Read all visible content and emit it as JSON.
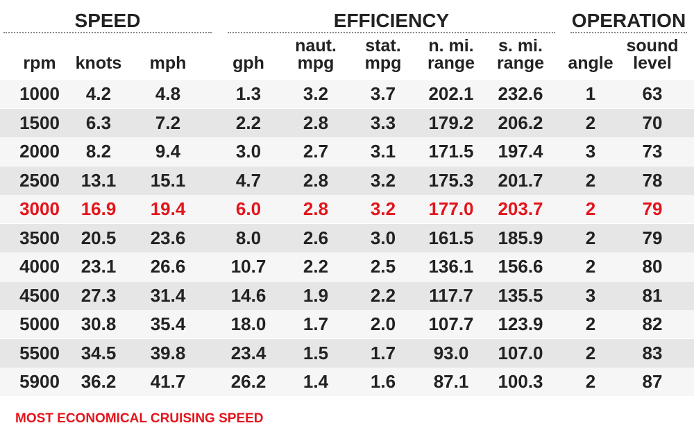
{
  "groups": [
    {
      "label": "SPEED"
    },
    {
      "label": "EFFICIENCY"
    },
    {
      "label": "OPERATION"
    }
  ],
  "columns": [
    "rpm",
    "knots",
    "mph",
    "gph",
    "naut.\nmpg",
    "stat.\nmpg",
    "n. mi.\nrange",
    "s. mi.\nrange",
    "angle",
    "sound\nlevel"
  ],
  "rows": [
    [
      "1000",
      "4.2",
      "4.8",
      "1.3",
      "3.2",
      "3.7",
      "202.1",
      "232.6",
      "1",
      "63"
    ],
    [
      "1500",
      "6.3",
      "7.2",
      "2.2",
      "2.8",
      "3.3",
      "179.2",
      "206.2",
      "2",
      "70"
    ],
    [
      "2000",
      "8.2",
      "9.4",
      "3.0",
      "2.7",
      "3.1",
      "171.5",
      "197.4",
      "3",
      "73"
    ],
    [
      "2500",
      "13.1",
      "15.1",
      "4.7",
      "2.8",
      "3.2",
      "175.3",
      "201.7",
      "2",
      "78"
    ],
    [
      "3000",
      "16.9",
      "19.4",
      "6.0",
      "2.8",
      "3.2",
      "177.0",
      "203.7",
      "2",
      "79"
    ],
    [
      "3500",
      "20.5",
      "23.6",
      "8.0",
      "2.6",
      "3.0",
      "161.5",
      "185.9",
      "2",
      "79"
    ],
    [
      "4000",
      "23.1",
      "26.6",
      "10.7",
      "2.2",
      "2.5",
      "136.1",
      "156.6",
      "2",
      "80"
    ],
    [
      "4500",
      "27.3",
      "31.4",
      "14.6",
      "1.9",
      "2.2",
      "117.7",
      "135.5",
      "3",
      "81"
    ],
    [
      "5000",
      "30.8",
      "35.4",
      "18.0",
      "1.7",
      "2.0",
      "107.7",
      "123.9",
      "2",
      "82"
    ],
    [
      "5500",
      "34.5",
      "39.8",
      "23.4",
      "1.5",
      "1.7",
      "93.0",
      "107.0",
      "2",
      "83"
    ],
    [
      "5900",
      "36.2",
      "41.7",
      "26.2",
      "1.4",
      "1.6",
      "87.1",
      "100.3",
      "2",
      "87"
    ]
  ],
  "highlight_row": 4,
  "highlight_color": "#e3141b",
  "footnote": "MOST ECONOMICAL CRUISING SPEED"
}
